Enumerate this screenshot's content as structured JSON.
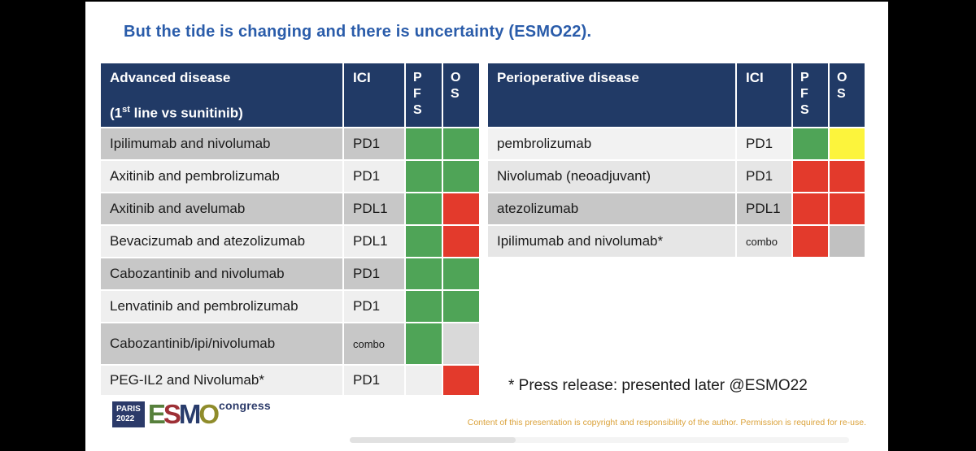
{
  "title": "But the tide is changing and there is uncertainty (ESMO22).",
  "colors": {
    "title_blue": "#2A5CAA",
    "header_navy": "#213A66",
    "status_green": "#4FA457",
    "status_red": "#E33A2C",
    "status_yellow": "#FCF43C",
    "status_gray": "#D9D9D9",
    "status_light": "#EFEFEF",
    "status_graydark": "#C1C1C1",
    "shade_a": "#C7C7C7",
    "shade_b": "#EFEFEF",
    "shade_b2": "#F2F2F2",
    "shade_c": "#E6E6E6",
    "logo_navy": "#2B3A69",
    "logo_e_green": "#57803C",
    "logo_s_red": "#9E3036",
    "logo_m_navy": "#293C6C",
    "logo_o_olive": "#8F8C2B",
    "copyright_orange": "#DBA33C",
    "scroll_track": "#F4F4F4",
    "scroll_thumb": "#E1E1E1"
  },
  "tables": [
    {
      "name": "advanced-disease",
      "header": {
        "line1": "Advanced disease",
        "line2_pre": "(1",
        "line2_sup": "st",
        "line2_post": " line vs sunitinib)",
        "ici": "ICI",
        "pfs": "P\nF\nS",
        "os": "O\nS"
      },
      "rows": [
        {
          "name": "Ipilimumab and nivolumab",
          "ici": "PD1",
          "ici_small": false,
          "pfs": "green",
          "os": "green",
          "shade": "a"
        },
        {
          "name": "Axitinib and pembrolizumab",
          "ici": "PD1",
          "ici_small": false,
          "pfs": "green",
          "os": "green",
          "shade": "b"
        },
        {
          "name": "Axitinib and avelumab",
          "ici": "PDL1",
          "ici_small": false,
          "pfs": "green",
          "os": "red",
          "shade": "a"
        },
        {
          "name": "Bevacizumab and atezolizumab",
          "ici": "PDL1",
          "ici_small": false,
          "pfs": "green",
          "os": "red",
          "shade": "b"
        },
        {
          "name": "Cabozantinib and nivolumab",
          "ici": "PD1",
          "ici_small": false,
          "pfs": "green",
          "os": "green",
          "shade": "a"
        },
        {
          "name": "Lenvatinib and pembrolizumab",
          "ici": "PD1",
          "ici_small": false,
          "pfs": "green",
          "os": "green",
          "shade": "b"
        },
        {
          "name": "Cabozantinib/ipi/nivolumab",
          "ici": "combo",
          "ici_small": true,
          "pfs": "green",
          "os": "gray",
          "shade": "a"
        },
        {
          "name": "PEG-IL2 and Nivolumab*",
          "ici": "PD1",
          "ici_small": false,
          "pfs": "light",
          "os": "red",
          "shade": "b"
        }
      ]
    },
    {
      "name": "perioperative-disease",
      "header": {
        "line1": "Perioperative disease",
        "line2_pre": "",
        "line2_sup": "",
        "line2_post": "",
        "ici": "ICI",
        "pfs": "P\nF\nS",
        "os": "O\nS"
      },
      "rows": [
        {
          "name": "pembrolizumab",
          "ici": "PD1",
          "ici_small": false,
          "pfs": "green",
          "os": "yellow",
          "shade": "b2"
        },
        {
          "name": "Nivolumab (neoadjuvant)",
          "ici": "PD1",
          "ici_small": false,
          "pfs": "red",
          "os": "red",
          "shade": "c"
        },
        {
          "name": "atezolizumab",
          "ici": "PDL1",
          "ici_small": false,
          "pfs": "red",
          "os": "red",
          "shade": "a"
        },
        {
          "name": "Ipilimumab and nivolumab*",
          "ici": "combo",
          "ici_small": true,
          "pfs": "red",
          "os": "graydark",
          "shade": "c"
        }
      ]
    }
  ],
  "footnote": "* Press release: presented later @ESMO22",
  "footer": {
    "logo": {
      "city": "PARIS",
      "year": "2022",
      "letters": [
        "E",
        "S",
        "M",
        "O"
      ],
      "congress": "congress"
    },
    "copyright": "Content of this presentation is copyright and responsibility of the author. Permission is required for re-use."
  }
}
